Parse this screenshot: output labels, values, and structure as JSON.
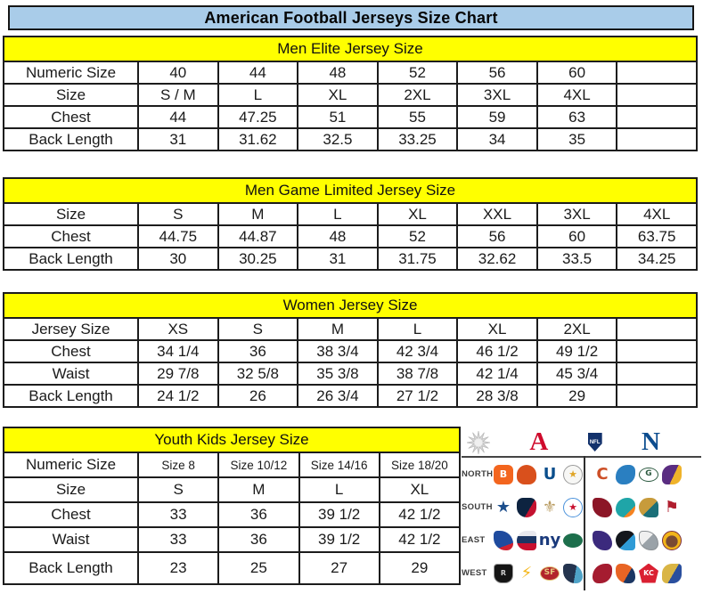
{
  "title": "American Football Jerseys Size Chart",
  "colors": {
    "title_bg": "#a9cce9",
    "header_bg": "#ffff00",
    "afc": "#cf0a2c",
    "nfc": "#0d4d8f"
  },
  "tables": [
    {
      "name": "men-elite",
      "header": "Men Elite Jersey Size",
      "rows": [
        {
          "label": "Numeric Size",
          "cells": [
            "40",
            "44",
            "48",
            "52",
            "56",
            "60",
            ""
          ]
        },
        {
          "label": "Size",
          "cells": [
            "S / M",
            "L",
            "XL",
            "2XL",
            "3XL",
            "4XL",
            ""
          ]
        },
        {
          "label": "Chest",
          "cells": [
            "44",
            "47.25",
            "51",
            "55",
            "59",
            "63",
            ""
          ]
        },
        {
          "label": "Back Length",
          "cells": [
            "31",
            "31.62",
            "32.5",
            "33.25",
            "34",
            "35",
            ""
          ]
        }
      ]
    },
    {
      "name": "men-game-limited",
      "header": "Men Game Limited Jersey Size",
      "rows": [
        {
          "label": "Size",
          "cells": [
            "S",
            "M",
            "L",
            "XL",
            "XXL",
            "3XL",
            "4XL"
          ]
        },
        {
          "label": "Chest",
          "cells": [
            "44.75",
            "44.87",
            "48",
            "52",
            "56",
            "60",
            "63.75"
          ]
        },
        {
          "label": "Back Length",
          "cells": [
            "30",
            "30.25",
            "31",
            "31.75",
            "32.62",
            "33.5",
            "34.25"
          ]
        }
      ]
    },
    {
      "name": "women",
      "header": "Women Jersey Size",
      "rows": [
        {
          "label": "Jersey Size",
          "cells": [
            "XS",
            "S",
            "M",
            "L",
            "XL",
            "2XL",
            ""
          ]
        },
        {
          "label": "Chest",
          "cells": [
            "34 1/4",
            "36",
            "38 3/4",
            "42 3/4",
            "46 1/2",
            "49 1/2",
            ""
          ]
        },
        {
          "label": "Waist",
          "cells": [
            "29 7/8",
            "32 5/8",
            "35 3/8",
            "38 7/8",
            "42 1/4",
            "45 3/4",
            ""
          ]
        },
        {
          "label": "Back Length",
          "cells": [
            "24 1/2",
            "26",
            "26 3/4",
            "27 1/2",
            "28 3/8",
            "29",
            ""
          ]
        }
      ]
    },
    {
      "name": "youth-kids",
      "header": "Youth Kids Jersey Size",
      "narrow": true,
      "rows": [
        {
          "label": "Numeric Size",
          "cells": [
            "Size 8",
            "Size 10/12",
            "Size 14/16",
            "Size 18/20"
          ],
          "small": true
        },
        {
          "label": "Size",
          "cells": [
            "S",
            "M",
            "L",
            "XL"
          ]
        },
        {
          "label": "Chest",
          "cells": [
            "33",
            "36",
            "39 1/2",
            "42 1/2"
          ]
        },
        {
          "label": "Waist",
          "cells": [
            "33",
            "36",
            "39 1/2",
            "42 1/2"
          ]
        },
        {
          "label": "Back Length",
          "cells": [
            "23",
            "25",
            "27",
            "29"
          ]
        }
      ]
    }
  ],
  "logo_panel": {
    "afc_letter": "A",
    "nfc_letter": "N",
    "nfl_label": "NFL",
    "header_icons": [
      "starburst-icon",
      "afc-logo",
      "nfl-shield-icon",
      "nfc-logo"
    ],
    "rows": [
      {
        "label": "NORTH",
        "afc": [
          "bengals",
          "browns",
          "colts",
          "steelers"
        ],
        "nfc": [
          "bears",
          "lions",
          "packers",
          "vikings"
        ]
      },
      {
        "label": "SOUTH",
        "afc": [
          "cowboys",
          "texans",
          "saints",
          "titans"
        ],
        "nfc": [
          "falcons",
          "dolphins",
          "jaguars",
          "buccaneers"
        ]
      },
      {
        "label": "EAST",
        "afc": [
          "bills",
          "patriots",
          "giants",
          "jets"
        ],
        "nfc": [
          "ravens",
          "panthers",
          "eagles",
          "redskins"
        ]
      },
      {
        "label": "WEST",
        "afc": [
          "raiders",
          "chargers",
          "49ers",
          "seahawks"
        ],
        "nfc": [
          "cardinals",
          "broncos",
          "chiefs",
          "rams"
        ]
      }
    ],
    "teams": {
      "bengals": {
        "bg": "#f3651e",
        "glyph": "B",
        "fg": "#ffffff",
        "shape": "round"
      },
      "browns": {
        "bg": "#d9501c",
        "glyph": "",
        "fg": "",
        "shape": "helmet"
      },
      "colts": {
        "bg": "#ffffff",
        "glyph": "U",
        "fg": "#0a4e8c",
        "shape": "plain"
      },
      "steelers": {
        "bg": "#f7f7f5",
        "glyph": "★",
        "fg": "#e0a526",
        "shape": "circle",
        "border": "#9a9a9a"
      },
      "cowboys": {
        "bg": "transparent",
        "glyph": "★",
        "fg": "#1d4f8d",
        "shape": "plain"
      },
      "texans": {
        "bg": "linear-gradient(120deg,#0d2340 62%,#c41230 62%)",
        "glyph": "",
        "fg": "",
        "shape": "bull"
      },
      "saints": {
        "bg": "transparent",
        "glyph": "⚜",
        "fg": "#b99c62",
        "shape": "plain"
      },
      "titans": {
        "bg": "#ffffff",
        "glyph": "★",
        "fg": "#c8102e",
        "shape": "circle",
        "border": "#4b92db"
      },
      "bears": {
        "bg": "transparent",
        "glyph": "C",
        "fg": "#cd4f27",
        "shape": "plain"
      },
      "lions": {
        "bg": "#2a7fc1",
        "glyph": "",
        "fg": "",
        "shape": "lion"
      },
      "packers": {
        "bg": "#ffffff",
        "glyph": "G",
        "fg": "#2c5a40",
        "shape": "oval",
        "border": "#2c5a40"
      },
      "vikings": {
        "bg": "linear-gradient(115deg,#5a2d81 58%,#f0b32a 58%)",
        "glyph": "",
        "fg": "",
        "shape": "horn"
      },
      "falcons": {
        "bg": "#8c1627",
        "glyph": "",
        "fg": "",
        "shape": "bird"
      },
      "dolphins": {
        "bg": "linear-gradient(135deg,#1fa5a8 70%,#f58220 70%)",
        "glyph": "",
        "fg": "",
        "shape": "fish"
      },
      "jaguars": {
        "bg": "linear-gradient(135deg,#c79b3b 55%,#1b6f78 55%)",
        "glyph": "",
        "fg": "",
        "shape": "cat"
      },
      "buccaneers": {
        "bg": "transparent",
        "glyph": "⚑",
        "fg": "#b01e2e",
        "shape": "plain"
      },
      "bills": {
        "bg": "linear-gradient(160deg,#1f4b9e 72%,#d02030 72%)",
        "glyph": "",
        "fg": "",
        "shape": "bird"
      },
      "patriots": {
        "bg": "linear-gradient(180deg,#e8e8ee 28%,#1b3663 28% 64%,#c8102e 64%)",
        "glyph": "",
        "fg": "",
        "shape": "fly"
      },
      "giants": {
        "bg": "transparent",
        "glyph": "ny",
        "fg": "#1a3a7c",
        "shape": "plain"
      },
      "jets": {
        "bg": "#1d6f4c",
        "glyph": "",
        "fg": "",
        "shape": "oval"
      },
      "ravens": {
        "bg": "#3b2a7d",
        "glyph": "",
        "fg": "",
        "shape": "bird"
      },
      "panthers": {
        "bg": "linear-gradient(135deg,#14171c 55%,#2f9bd6 55%)",
        "glyph": "",
        "fg": "",
        "shape": "cat"
      },
      "eagles": {
        "bg": "linear-gradient(135deg,#f0f0f0 45%,#9aa2a8 45%)",
        "glyph": "",
        "fg": "",
        "shape": "bird",
        "border": "#8a8f93"
      },
      "redskins": {
        "bg": "radial-gradient(circle at 50% 55%,#7a4a33 44%,#f2b419 46%)",
        "glyph": "",
        "fg": "",
        "shape": "circle",
        "border": "#7a2e3f"
      },
      "raiders": {
        "bg": "#151515",
        "glyph": "R",
        "fg": "#cfcfcf",
        "shape": "shield",
        "border": "#9a9a9a"
      },
      "chargers": {
        "bg": "transparent",
        "glyph": "⚡",
        "fg": "#f4b618",
        "shape": "plain"
      },
      "49ers": {
        "bg": "#b2242b",
        "glyph": "SF",
        "fg": "#e6c87e",
        "shape": "oval",
        "border": "#e6c87e"
      },
      "seahawks": {
        "bg": "linear-gradient(100deg,#24344f 60%,#4fa3c8 60%)",
        "glyph": "",
        "fg": "",
        "shape": "bird"
      },
      "cardinals": {
        "bg": "#a51c30",
        "glyph": "",
        "fg": "",
        "shape": "bird2"
      },
      "broncos": {
        "bg": "linear-gradient(120deg,#e86424 60%,#1b3663 60%)",
        "glyph": "",
        "fg": "",
        "shape": "horse"
      },
      "chiefs": {
        "bg": "#da2032",
        "glyph": "KC",
        "fg": "#ffffff",
        "shape": "arrow"
      },
      "rams": {
        "bg": "linear-gradient(120deg,#d9b545 55%,#2a4f9e 55%)",
        "glyph": "",
        "fg": "",
        "shape": "horn"
      }
    }
  }
}
